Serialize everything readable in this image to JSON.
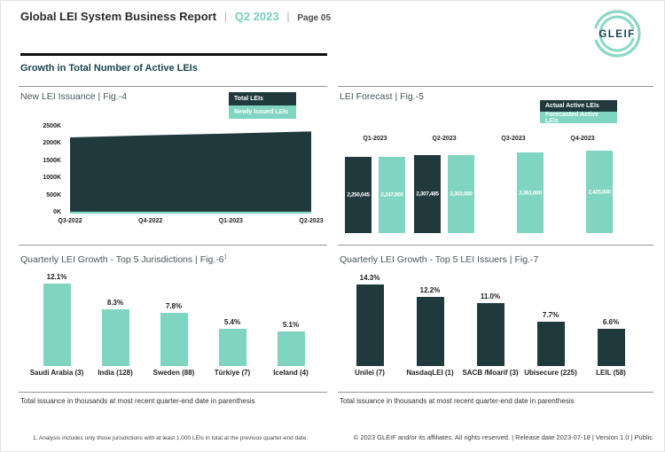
{
  "header": {
    "title": "Global LEI System Business Report",
    "separator": "|",
    "period": "Q2 2023",
    "page": "Page 05",
    "logo_text": "GLEIF",
    "section_heading": "Growth in Total Number of Active LEIs"
  },
  "colors": {
    "dark_teal": "#20393d",
    "mint": "#7fd5bf",
    "heading_teal": "#1a4551",
    "accent_period": "#76cfba"
  },
  "chart_data": [
    {
      "id": "fig-4",
      "type": "area",
      "title": "New LEI Issuance | Fig.-4",
      "legend": [
        {
          "label": "Total LEIs",
          "color": "#20393d"
        },
        {
          "label": "Newly Issued LEIs",
          "color": "#7fd5bf"
        }
      ],
      "legend_position": "top-right",
      "x": [
        "Q3-2022",
        "Q4-2022",
        "Q1-2023",
        "Q2-2023"
      ],
      "series": [
        {
          "name": "Total LEIs",
          "values_thousands": [
            2150,
            2210,
            2260,
            2320
          ]
        },
        {
          "name": "Newly Issued LEIs",
          "values_thousands": [
            55,
            55,
            60,
            60
          ]
        }
      ],
      "yticks": [
        "2500K",
        "2000K",
        "1500K",
        "1000K",
        "500K",
        "0K"
      ],
      "ylim_thousands": [
        0,
        2500
      ],
      "grid": false
    },
    {
      "id": "fig-5",
      "type": "bar",
      "title": "LEI Forecast | Fig.-5",
      "legend": [
        {
          "label": "Actual Active LEIs",
          "color": "#20393d"
        },
        {
          "label": "Forecasted Active LEIs",
          "color": "#7fd5bf"
        }
      ],
      "legend_position": "top-right",
      "categories": [
        "Q1-2023",
        "Q2-2023",
        "Q3-2023",
        "Q4-2023"
      ],
      "series": [
        {
          "name": "Actual Active LEIs",
          "values": [
            2250045,
            2307485,
            null,
            null
          ],
          "labels": [
            "2,250,045",
            "2,307,485",
            null,
            null
          ]
        },
        {
          "name": "Forecasted Active LEIs",
          "values": [
            2247000,
            2302000,
            2361000,
            2425000
          ],
          "labels": [
            "2,247,000",
            "2,302,000",
            "2,361,000",
            "2,425,000"
          ]
        }
      ],
      "value_labels_inside_bars": true
    },
    {
      "id": "fig-6",
      "type": "bar",
      "title": "Quarterly LEI Growth - Top 5 Jurisdictions | Fig.-6",
      "title_superscript": "1",
      "categories": [
        "Saudi Arabia (3)",
        "India (128)",
        "Sweden (88)",
        "Türkiye (7)",
        "Iceland (4)"
      ],
      "values_percent": [
        12.1,
        8.3,
        7.8,
        5.4,
        5.1
      ],
      "labels": [
        "12.1%",
        "8.3%",
        "7.8%",
        "5.4%",
        "5.1%"
      ],
      "bar_color": "#7fd5bf",
      "note": "Total issuance in thousands at most recent quarter-end date in parenthesis"
    },
    {
      "id": "fig-7",
      "type": "bar",
      "title": "Quarterly LEI Growth - Top 5 LEI Issuers | Fig.-7",
      "categories": [
        "Unilei (7)",
        "NasdaqLEI (1)",
        "SACB /Moarif (3)",
        "Ubisecure (225)",
        "LEIL (58)"
      ],
      "values_percent": [
        14.3,
        12.2,
        11.0,
        7.7,
        6.6
      ],
      "labels": [
        "14.3%",
        "12.2%",
        "11.0%",
        "7.7%",
        "6.6%"
      ],
      "bar_color": "#20393d",
      "note": "Total issuance in thousands at most recent quarter-end date in parenthesis"
    }
  ],
  "footer": {
    "footnote": "1. Analysis includes only those jurisdictions with at least 1,000 LEIs in total at the previous quarter-end date.",
    "copyright": "© 2023 GLEIF and/or its affiliates. All rights reserved. | Release date 2023-07-18 | Version 1.0 | Public"
  }
}
